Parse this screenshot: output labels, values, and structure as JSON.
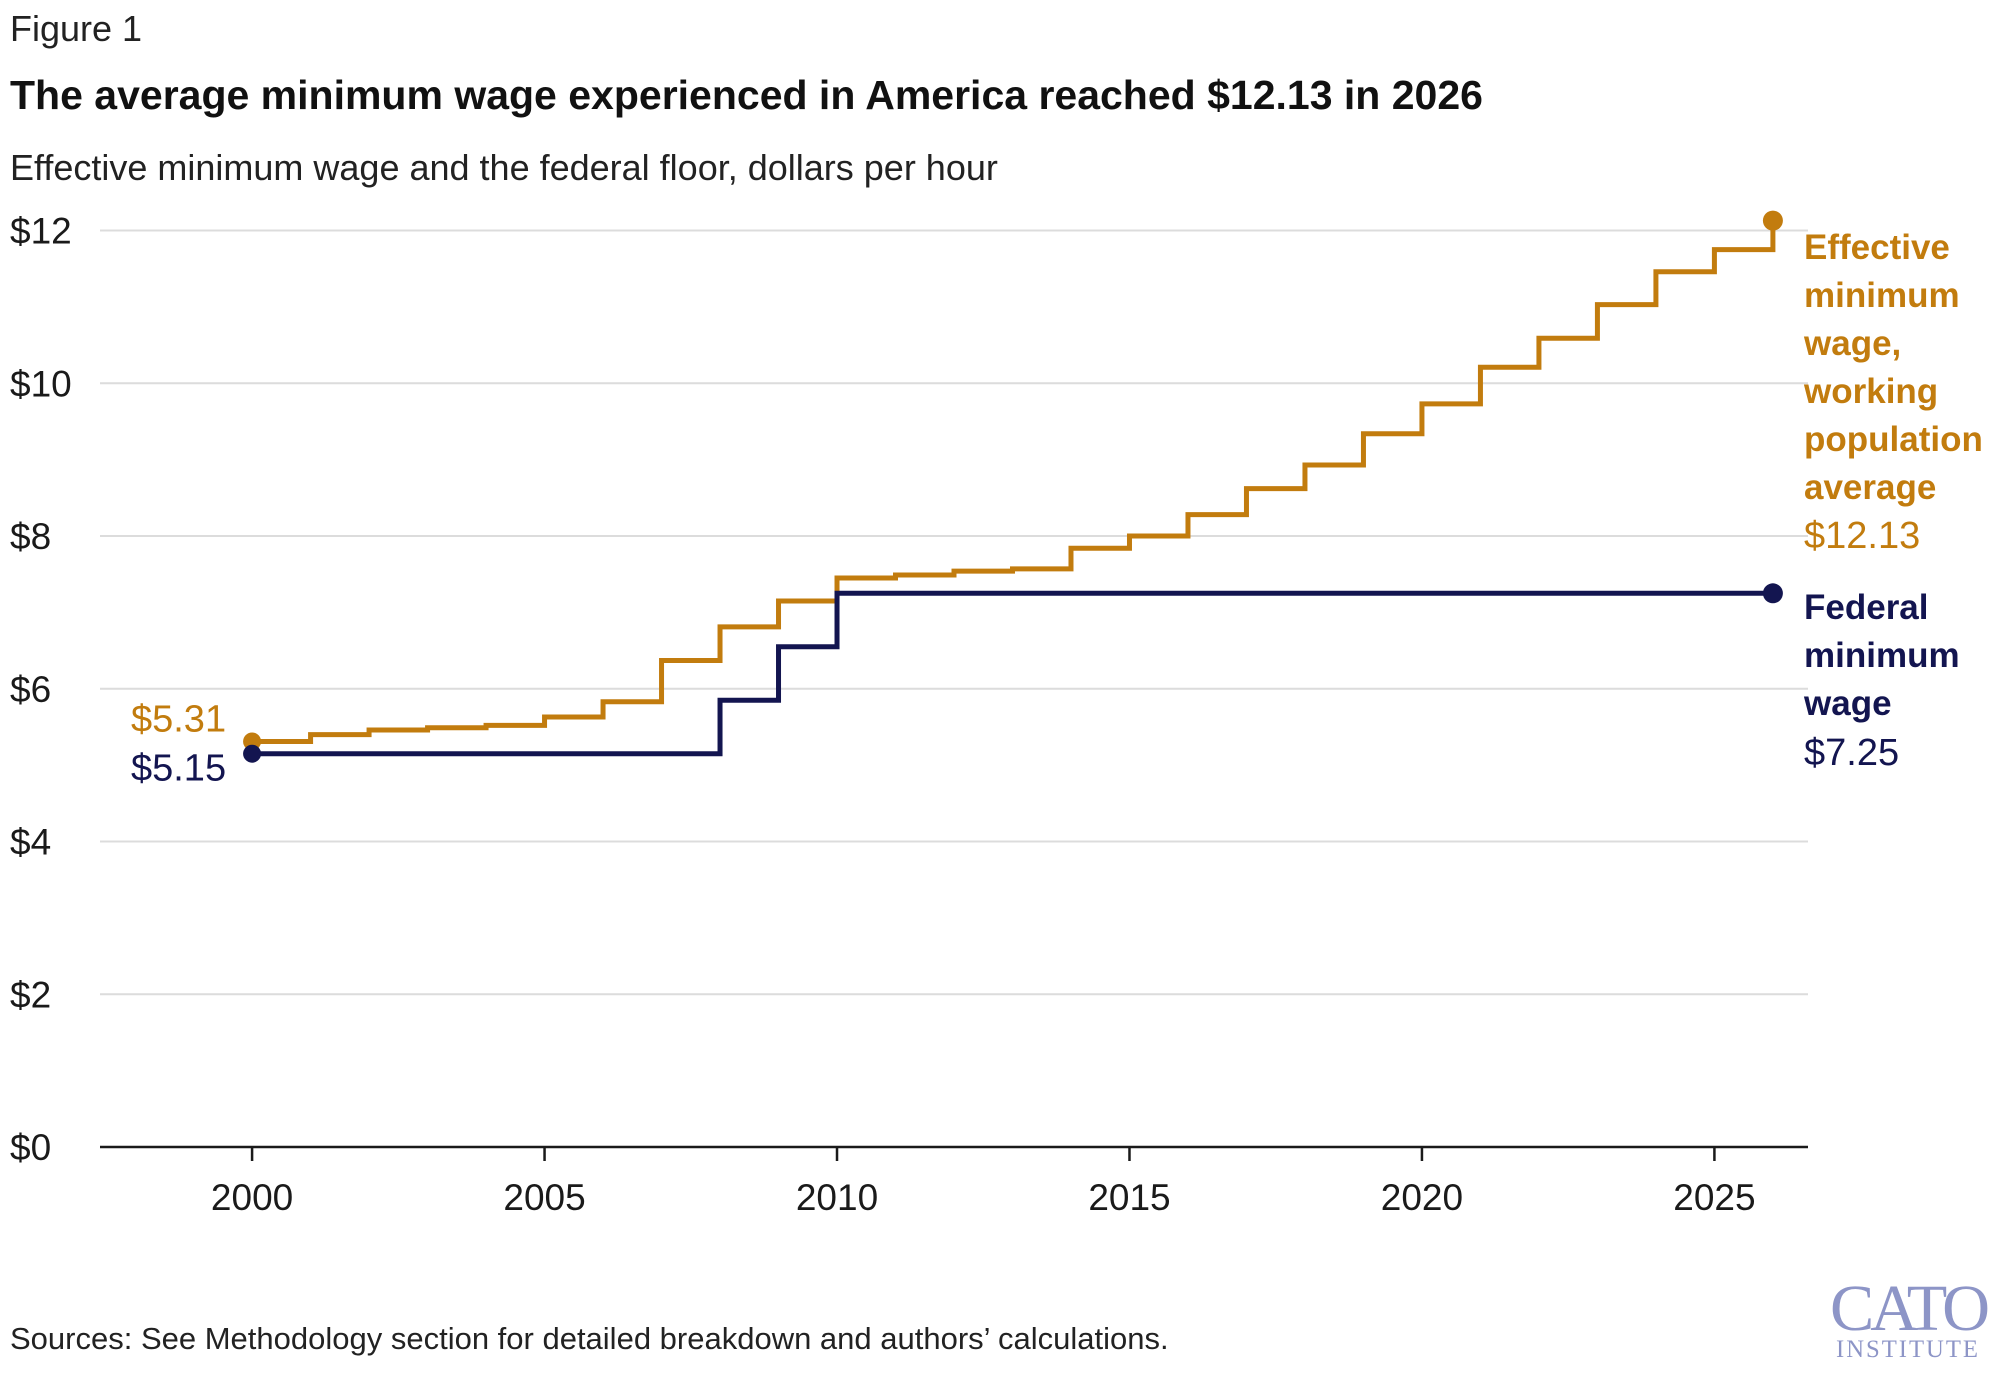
{
  "figure_label": "Figure 1",
  "title": "The average minimum wage experienced in America reached $12.13 in 2026",
  "subtitle": "Effective minimum wage and the federal floor, dollars per hour",
  "sources": "Sources: See Methodology section for detailed breakdown and authors’ calculations.",
  "logo": {
    "main": "CATO",
    "sub": "INSTITUTE"
  },
  "colors": {
    "effective": "#c27c0e",
    "federal": "#131550",
    "grid": "#dcdcdc"
  },
  "chart_data": {
    "type": "line",
    "step": true,
    "xlim": [
      1997.4,
      2026.6
    ],
    "ylim": [
      0,
      12.4
    ],
    "x_ticks": [
      {
        "value": 2000,
        "label": "2000"
      },
      {
        "value": 2005,
        "label": "2005"
      },
      {
        "value": 2010,
        "label": "2010"
      },
      {
        "value": 2015,
        "label": "2015"
      },
      {
        "value": 2020,
        "label": "2020"
      },
      {
        "value": 2025,
        "label": "2025"
      }
    ],
    "y_ticks": [
      {
        "value": 0,
        "label": "$0"
      },
      {
        "value": 2,
        "label": "$2"
      },
      {
        "value": 4,
        "label": "$4"
      },
      {
        "value": 6,
        "label": "$6"
      },
      {
        "value": 8,
        "label": "$8"
      },
      {
        "value": 10,
        "label": "$10"
      },
      {
        "value": 12,
        "label": "$12"
      }
    ],
    "grid": true,
    "series": [
      {
        "key": "effective",
        "legend_lines": [
          "Effective",
          "minimum",
          "wage,",
          "working",
          "population",
          "average"
        ],
        "end_label": "$12.13",
        "start_label": "$5.31",
        "x": [
          2000,
          2001,
          2002,
          2003,
          2004,
          2005,
          2006,
          2007,
          2008,
          2009,
          2010,
          2011,
          2012,
          2013,
          2014,
          2015,
          2016,
          2017,
          2018,
          2019,
          2020,
          2021,
          2022,
          2023,
          2024,
          2025,
          2026
        ],
        "y": [
          5.31,
          5.4,
          5.46,
          5.49,
          5.52,
          5.63,
          5.83,
          6.37,
          6.81,
          7.15,
          7.45,
          7.49,
          7.54,
          7.57,
          7.84,
          8.0,
          8.28,
          8.62,
          8.93,
          9.34,
          9.73,
          10.21,
          10.59,
          11.03,
          11.46,
          11.75,
          12.13
        ]
      },
      {
        "key": "federal",
        "legend_lines": [
          "Federal",
          "minimum",
          "wage"
        ],
        "end_label": "$7.25",
        "start_label": "$5.15",
        "x": [
          2000,
          2008,
          2009,
          2010,
          2026
        ],
        "y": [
          5.15,
          5.85,
          6.55,
          7.25,
          7.25
        ]
      }
    ]
  }
}
